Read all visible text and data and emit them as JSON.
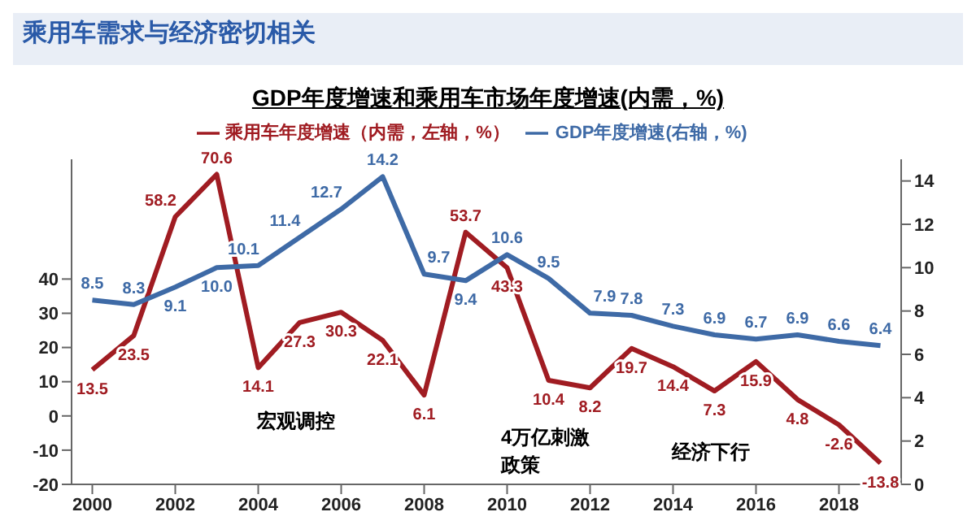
{
  "chart_data": {
    "type": "line",
    "title": "GDP年度增速和乘用车市场年度增速(内需，%)",
    "annotations": [
      "乘用车需求与经济密切相关",
      "宏观调控",
      "4万亿刺激政策",
      "经济下行"
    ],
    "x": [
      2000,
      2001,
      2002,
      2003,
      2004,
      2005,
      2006,
      2007,
      2008,
      2009,
      2010,
      2011,
      2012,
      2013,
      2014,
      2015,
      2016,
      2017,
      2018,
      2019
    ],
    "xlim": [
      1999.5,
      2019.5
    ],
    "xticks": [
      2000,
      2002,
      2004,
      2006,
      2008,
      2010,
      2012,
      2014,
      2016,
      2018
    ],
    "ylim": [
      -20,
      75
    ],
    "yticks": [
      -20,
      -10,
      0,
      10,
      20,
      30,
      40
    ],
    "y2lim": [
      0,
      15
    ],
    "y2ticks": [
      0,
      2,
      4,
      6,
      8,
      10,
      12,
      14
    ],
    "series": [
      {
        "name": "乘用车年度增速（内需，左轴，%）",
        "color": "#a01c22",
        "values": [
          13.5,
          23.5,
          58.2,
          70.6,
          14.1,
          27.3,
          30.3,
          22.1,
          6.1,
          53.7,
          43.3,
          10.4,
          8.2,
          19.7,
          14.4,
          7.3,
          15.9,
          4.8,
          -2.6,
          -13.8
        ]
      },
      {
        "name": "GDP年度增速(右轴，%)",
        "color": "#3e6aa6",
        "axis": "y2",
        "value_labels": [
          "8.5",
          "8.3",
          "9.1",
          "10.0",
          "10.1",
          "11.4",
          "12.7",
          "14.2",
          "9.7",
          "9.4",
          "10.6",
          "9.5",
          "7.9",
          "7.8",
          "7.3",
          "6.9",
          "6.7",
          "6.9",
          "6.6",
          "6.4"
        ],
        "values": [
          8.5,
          8.3,
          9.1,
          10.0,
          10.1,
          11.4,
          12.7,
          14.2,
          9.7,
          9.4,
          10.6,
          9.5,
          7.9,
          7.8,
          7.3,
          6.9,
          6.7,
          6.9,
          6.6,
          6.4
        ]
      }
    ],
    "data_labels": true,
    "legend": "top",
    "grid": false,
    "marker": "none",
    "line_style": "solid"
  }
}
